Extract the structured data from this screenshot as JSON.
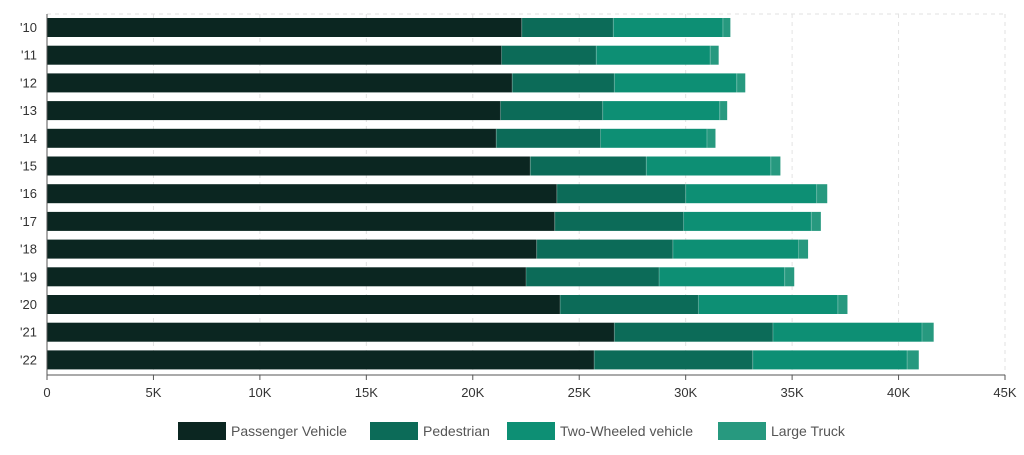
{
  "chart_data": {
    "type": "bar",
    "orientation": "horizontal",
    "stacked": true,
    "categories": [
      "'10",
      "'11",
      "'12",
      "'13",
      "'14",
      "'15",
      "'16",
      "'17",
      "'18",
      "'19",
      "'20",
      "'21",
      "'22"
    ],
    "series": [
      {
        "name": "Passenger Vehicle",
        "color": "#0b2621",
        "values": [
          22300,
          21350,
          21850,
          21300,
          21100,
          22700,
          23950,
          23850,
          23000,
          22500,
          24100,
          26650,
          25700
        ]
      },
      {
        "name": "Pedestrian",
        "color": "#0c6b58",
        "values": [
          4300,
          4450,
          4800,
          4800,
          4900,
          5450,
          6050,
          6050,
          6400,
          6250,
          6500,
          7450,
          7450
        ]
      },
      {
        "name": "Two-Wheeled vehicle",
        "color": "#0d8f74",
        "values": [
          5150,
          5350,
          5750,
          5500,
          5000,
          5850,
          6150,
          6000,
          5900,
          5900,
          6550,
          7000,
          7250
        ]
      },
      {
        "name": "Large Truck",
        "color": "#27997f",
        "values": [
          350,
          400,
          400,
          350,
          400,
          450,
          500,
          450,
          450,
          450,
          450,
          550,
          550
        ]
      }
    ],
    "xlim": [
      0,
      45000
    ],
    "xticks": [
      {
        "value": 0,
        "label": "0"
      },
      {
        "value": 5000,
        "label": "5K"
      },
      {
        "value": 10000,
        "label": "10K"
      },
      {
        "value": 15000,
        "label": "15K"
      },
      {
        "value": 20000,
        "label": "20K"
      },
      {
        "value": 25000,
        "label": "25K"
      },
      {
        "value": 30000,
        "label": "30K"
      },
      {
        "value": 35000,
        "label": "35K"
      },
      {
        "value": 40000,
        "label": "40K"
      },
      {
        "value": 45000,
        "label": "45K"
      }
    ],
    "grid": true,
    "legend_position": "bottom-center"
  }
}
